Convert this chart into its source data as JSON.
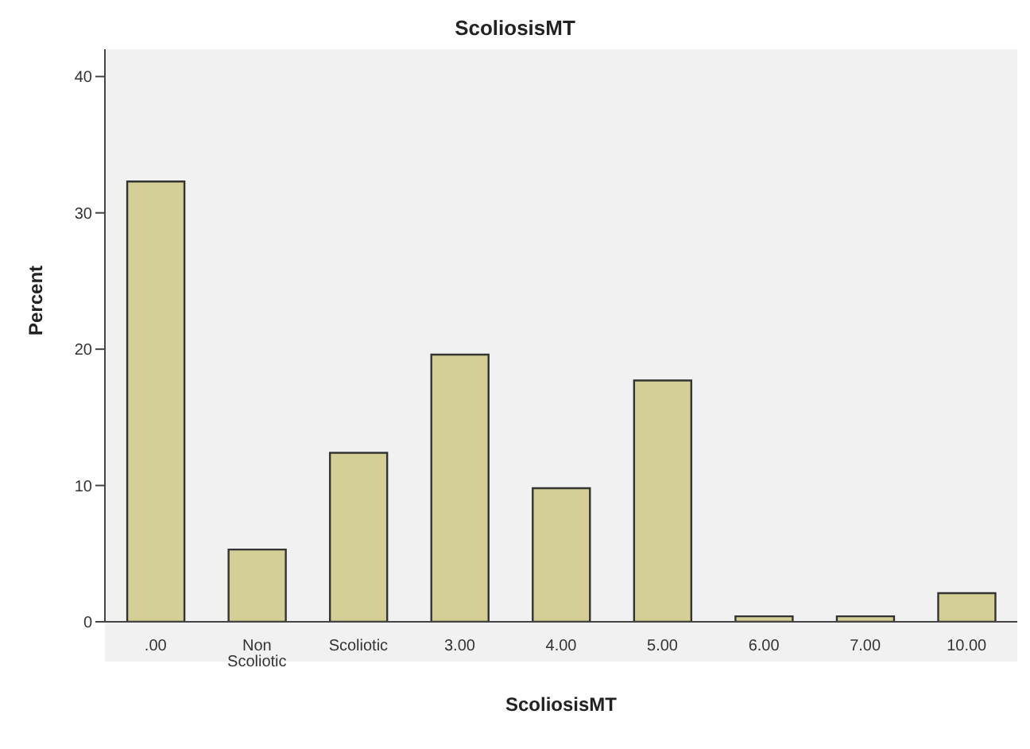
{
  "chart_data": {
    "type": "bar",
    "title": "ScoliosisMT",
    "xlabel": "ScoliosisMT",
    "ylabel": "Percent",
    "categories": [
      ".00",
      "Non Scoliotic",
      "Scoliotic",
      "3.00",
      "4.00",
      "5.00",
      "6.00",
      "7.00",
      "10.00"
    ],
    "values": [
      32.3,
      5.3,
      12.4,
      19.6,
      9.8,
      17.7,
      0.4,
      0.4,
      2.1
    ],
    "color": "#d3cf97",
    "ylim": [
      0,
      42
    ],
    "yticks": [
      0,
      10,
      20,
      30,
      40
    ],
    "grid": false,
    "legend": false
  }
}
